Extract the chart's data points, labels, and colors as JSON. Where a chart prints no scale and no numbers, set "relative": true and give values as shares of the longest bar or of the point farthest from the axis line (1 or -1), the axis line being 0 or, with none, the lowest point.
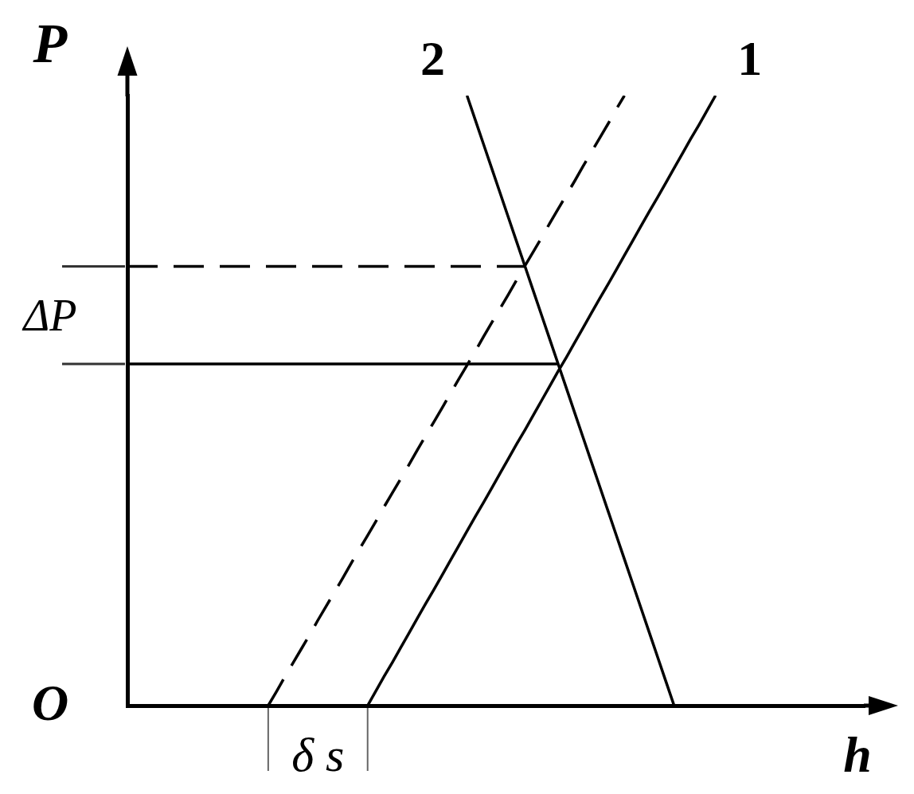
{
  "chart_data": {
    "type": "line",
    "relative": true,
    "xlabel": "h",
    "ylabel": "P",
    "marker": "none",
    "categories": [
      null,
      null,
      null,
      null,
      null,
      null,
      null,
      null,
      null,
      null,
      null,
      null,
      null,
      null,
      null,
      null,
      null,
      null,
      null,
      null,
      null,
      null,
      null,
      null,
      null,
      null,
      null,
      null,
      null,
      null,
      null,
      null,
      null,
      null,
      null,
      null,
      null,
      null,
      null,
      null,
      null,
      null,
      null,
      null,
      null,
      null,
      null,
      null,
      null,
      null,
      null,
      null,
      null,
      null,
      null,
      null,
      null,
      null,
      null,
      null,
      null,
      null,
      null,
      null,
      null,
      null,
      null,
      null,
      null,
      null,
      null,
      null,
      null,
      null,
      null,
      null,
      null,
      null,
      null,
      null,
      null,
      null,
      null,
      null,
      null,
      null,
      null,
      null,
      null,
      null
    ],
    "series": [
      {
        "name": "1",
        "color": "#000000",
        "values": [
          null,
          null,
          null,
          null,
          null,
          null,
          null,
          null,
          null,
          null,
          null,
          null,
          null,
          null,
          null,
          null,
          null,
          null,
          null,
          null,
          null,
          null,
          null,
          null,
          null,
          null,
          null,
          null,
          null,
          0,
          0.024,
          0.048,
          0.071,
          0.095,
          0.119,
          0.143,
          0.167,
          0.19,
          0.214,
          0.238,
          0.262,
          0.286,
          0.31,
          0.333,
          0.357,
          0.381,
          0.405,
          0.429,
          0.452,
          0.476,
          0.5,
          0.524,
          0.548,
          0.571,
          0.595,
          0.619,
          0.643,
          0.667,
          0.69,
          0.714,
          0.738,
          0.762,
          0.786,
          0.81,
          0.833,
          0.857,
          0.881,
          0.905,
          0.929,
          0.952,
          0.976,
          1,
          null,
          null,
          null,
          null,
          null,
          null,
          null,
          null,
          null,
          null,
          null,
          null,
          null,
          null,
          null,
          null,
          null,
          null
        ]
      },
      {
        "name": "2",
        "color": "#000000",
        "values": [
          null,
          null,
          null,
          null,
          null,
          null,
          null,
          null,
          null,
          null,
          null,
          null,
          null,
          null,
          null,
          null,
          null,
          null,
          null,
          null,
          null,
          null,
          null,
          null,
          null,
          null,
          null,
          null,
          null,
          null,
          null,
          null,
          null,
          null,
          null,
          null,
          null,
          null,
          null,
          null,
          null,
          1,
          0.96,
          0.92,
          0.88,
          0.84,
          0.8,
          0.76,
          0.72,
          0.68,
          0.64,
          0.6,
          0.56,
          0.52,
          0.48,
          0.44,
          0.4,
          0.36,
          0.32,
          0.28,
          0.24,
          0.2,
          0.16,
          0.12,
          0.08,
          0.04,
          0,
          null,
          null,
          null,
          null,
          null,
          null,
          null,
          null,
          null,
          null,
          null,
          null,
          null,
          null,
          null,
          null,
          null,
          null,
          null,
          null,
          null,
          null,
          null
        ]
      },
      {
        "color": "#000000",
        "line_style": "dashed",
        "values": [
          null,
          null,
          null,
          null,
          null,
          null,
          null,
          null,
          null,
          null,
          null,
          null,
          null,
          null,
          null,
          null,
          null,
          0,
          0.023,
          0.047,
          0.07,
          0.093,
          0.116,
          0.14,
          0.163,
          0.186,
          0.209,
          0.233,
          0.256,
          0.279,
          0.302,
          0.326,
          0.349,
          0.372,
          0.395,
          0.419,
          0.442,
          0.465,
          0.488,
          0.512,
          0.535,
          0.558,
          0.581,
          0.605,
          0.628,
          0.651,
          0.674,
          0.698,
          0.721,
          0.744,
          0.767,
          0.791,
          0.814,
          0.837,
          0.86,
          0.884,
          0.907,
          0.93,
          0.953,
          0.977,
          1,
          null,
          null,
          null,
          null,
          null,
          null,
          null,
          null,
          null,
          null,
          null,
          null,
          null,
          null,
          null,
          null,
          null,
          null,
          null,
          null,
          null,
          null,
          null,
          null,
          null,
          null,
          null,
          null,
          null
        ]
      },
      {
        "color": "#000000",
        "values": [
          0.56,
          0.56,
          0.56,
          0.56,
          0.56,
          0.56,
          0.56,
          0.56,
          0.56,
          0.56,
          0.56,
          0.56,
          0.56,
          0.56,
          0.56,
          0.56,
          0.56,
          0.56,
          0.56,
          0.56,
          0.56,
          0.56,
          0.56,
          0.56,
          0.56,
          0.56,
          0.56,
          0.56,
          0.56,
          0.56,
          0.56,
          0.56,
          0.56,
          0.56,
          0.56,
          0.56,
          0.56,
          0.56,
          0.56,
          0.56,
          0.56,
          0.56,
          0.56,
          0.56,
          0.56,
          0.56,
          0.56,
          0.56,
          0.56,
          0.56,
          0.56,
          0.56,
          0.56,
          null,
          null,
          null,
          null,
          null,
          null,
          null,
          null,
          null,
          null,
          null,
          null,
          null,
          null,
          null,
          null,
          null,
          null,
          null,
          null,
          null,
          null,
          null,
          null,
          null,
          null,
          null,
          null,
          null,
          null,
          null,
          null,
          null,
          null,
          null,
          null,
          null
        ]
      },
      {
        "color": "#000000",
        "line_style": "dashed",
        "values": [
          0.72,
          0.72,
          0.72,
          0.72,
          0.72,
          0.72,
          0.72,
          0.72,
          0.72,
          0.72,
          0.72,
          0.72,
          0.72,
          0.72,
          0.72,
          0.72,
          0.72,
          0.72,
          0.72,
          0.72,
          0.72,
          0.72,
          0.72,
          0.72,
          0.72,
          0.72,
          0.72,
          0.72,
          0.72,
          0.72,
          0.72,
          0.72,
          0.72,
          0.72,
          0.72,
          0.72,
          0.72,
          0.72,
          0.72,
          0.72,
          0.72,
          0.72,
          0.72,
          0.72,
          0.72,
          0.72,
          0.72,
          0.72,
          0.72,
          null,
          null,
          null,
          null,
          null,
          null,
          null,
          null,
          null,
          null,
          null,
          null,
          null,
          null,
          null,
          null,
          null,
          null,
          null,
          null,
          null,
          null,
          null,
          null,
          null,
          null,
          null,
          null,
          null,
          null,
          null,
          null,
          null,
          null,
          null,
          null,
          null,
          null,
          null,
          null,
          null
        ]
      }
    ],
    "annotations": [
      "O",
      "ΔP",
      "δ s"
    ]
  }
}
